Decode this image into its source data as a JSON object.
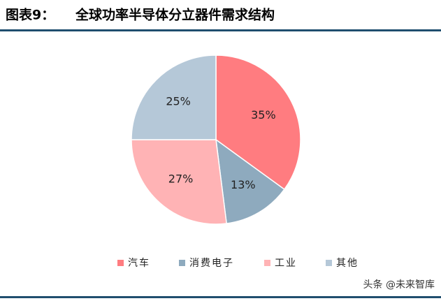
{
  "chart_data": {
    "type": "pie",
    "figure_label": "图表9：",
    "title": "全球功率半导体分立器件需求结构",
    "categories": [
      "汽车",
      "消费电子",
      "工业",
      "其他"
    ],
    "values": [
      35,
      13,
      27,
      25
    ],
    "value_labels": [
      "35%",
      "13%",
      "27%",
      "25%"
    ],
    "colors": [
      "#ff7c80",
      "#8eaabe",
      "#ffb3b5",
      "#b5c8d8"
    ],
    "legend": "bottom",
    "watermark": "头条 @未来智库"
  }
}
